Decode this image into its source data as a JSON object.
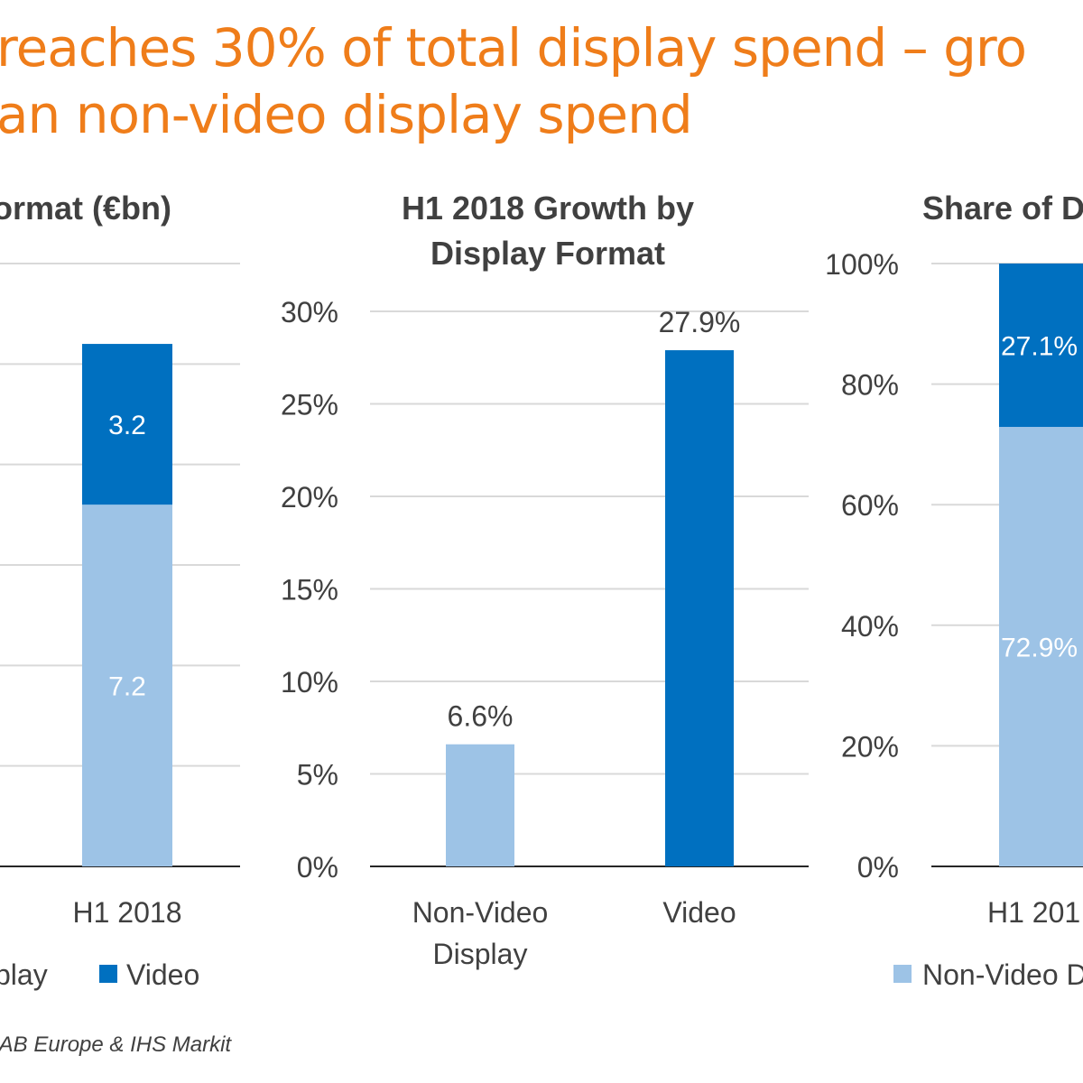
{
  "headline": {
    "line1": "reaches 30% of total display spend – gro",
    "line2": "an non-video display spend"
  },
  "source": "IAB Europe & IHS Markit",
  "colors": {
    "title_orange": "#ef7d1a",
    "non_video": "#9dc3e6",
    "video": "#0070c0",
    "text": "#404040",
    "grid": "#d9d9d9",
    "axis": "#262626"
  },
  "chart_data": [
    {
      "type": "bar",
      "stacked": true,
      "title": "ormat (€bn)",
      "categories": [
        "H1 2018"
      ],
      "series": [
        {
          "name": "play",
          "values": [
            7.2
          ],
          "labels": [
            "7.2"
          ],
          "color": "#9dc3e6"
        },
        {
          "name": "Video",
          "values": [
            3.2
          ],
          "labels": [
            "3.2"
          ],
          "color": "#0070c0"
        }
      ],
      "ylim": [
        0,
        12
      ],
      "yticks_count": 7,
      "grid": true,
      "legend": "bottom"
    },
    {
      "type": "bar",
      "title_lines": [
        "H1 2018 Growth by",
        "Display Format"
      ],
      "categories": [
        [
          "Non-Video",
          "Display"
        ],
        [
          "Video"
        ]
      ],
      "values": [
        6.6,
        27.9
      ],
      "value_labels": [
        "6.6%",
        "27.9%"
      ],
      "colors": [
        "#9dc3e6",
        "#0070c0"
      ],
      "ylim": [
        0,
        30
      ],
      "yticks": [
        0,
        5,
        10,
        15,
        20,
        25,
        30
      ],
      "ytick_labels": [
        "0%",
        "5%",
        "10%",
        "15%",
        "20%",
        "25%",
        "30%"
      ],
      "grid": true
    },
    {
      "type": "bar",
      "stacked": true,
      "title": "Share of D",
      "categories": [
        "H1 201"
      ],
      "series": [
        {
          "name": "Non-Video D",
          "values": [
            72.9
          ],
          "labels": [
            "72.9%"
          ],
          "color": "#9dc3e6"
        },
        {
          "name": "Video",
          "values": [
            27.1
          ],
          "labels": [
            "27.1%"
          ],
          "color": "#0070c0"
        }
      ],
      "ylim": [
        0,
        100
      ],
      "yticks": [
        0,
        20,
        40,
        60,
        80,
        100
      ],
      "ytick_labels": [
        "0%",
        "20%",
        "40%",
        "60%",
        "80%",
        "100%"
      ],
      "grid": true,
      "legend": "bottom"
    }
  ]
}
